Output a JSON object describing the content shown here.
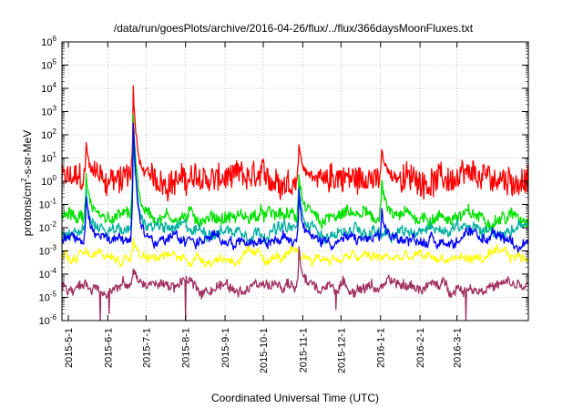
{
  "chart_data": {
    "type": "line",
    "title": "/data/run/goesPlots/archive/2016-04-26/flux/../flux/366daysMoonFluxes.txt",
    "xlabel": "Coordinated Universal Time (UTC)",
    "ylabel": {
      "prefix": "protons/cm",
      "sup": "2",
      "suffix": "-s-sr-MeV"
    },
    "yscale": "log",
    "ylim": [
      1e-06,
      1000000.0
    ],
    "y_ticks": [
      {
        "base": "10",
        "exp": "-6",
        "value": 1e-06
      },
      {
        "base": "10",
        "exp": "-5",
        "value": 1e-05
      },
      {
        "base": "10",
        "exp": "-4",
        "value": 0.0001
      },
      {
        "base": "10",
        "exp": "-3",
        "value": 0.001
      },
      {
        "base": "10",
        "exp": "-2",
        "value": 0.01
      },
      {
        "base": "10",
        "exp": "-1",
        "value": 0.1
      },
      {
        "base": "10",
        "exp": "0",
        "value": 1
      },
      {
        "base": "10",
        "exp": "1",
        "value": 10
      },
      {
        "base": "10",
        "exp": "2",
        "value": 100
      },
      {
        "base": "10",
        "exp": "3",
        "value": 1000
      },
      {
        "base": "10",
        "exp": "4",
        "value": 10000
      },
      {
        "base": "10",
        "exp": "5",
        "value": 100000
      },
      {
        "base": "10",
        "exp": "6",
        "value": 1000000
      }
    ],
    "xlim": [
      "2015-04-26",
      "2016-04-26"
    ],
    "x_ticks": [
      {
        "label": "2015-5-1",
        "date": "2015-05-01"
      },
      {
        "label": "2015-6-1",
        "date": "2015-06-01"
      },
      {
        "label": "2015-7-1",
        "date": "2015-07-01"
      },
      {
        "label": "2015-8-1",
        "date": "2015-08-01"
      },
      {
        "label": "2015-9-1",
        "date": "2015-09-01"
      },
      {
        "label": "2015-10-1",
        "date": "2015-10-01"
      },
      {
        "label": "2015-11-1",
        "date": "2015-11-01"
      },
      {
        "label": "2015-12-1",
        "date": "2015-12-01"
      },
      {
        "label": "2016-1-1",
        "date": "2016-01-01"
      },
      {
        "label": "2016-2-1",
        "date": "2016-02-01"
      },
      {
        "label": "2016-3-1",
        "date": "2016-03-01"
      }
    ],
    "grid": true,
    "legend": "none",
    "series": [
      {
        "color": "#ff0000",
        "baseline": 1.2,
        "spread_decades": 0.55,
        "events": [
          {
            "date": "2015-06-21",
            "peak": 10000
          },
          {
            "date": "2015-05-15",
            "peak": 30
          },
          {
            "date": "2015-10-29",
            "peak": 40
          },
          {
            "date": "2016-01-02",
            "peak": 25
          }
        ]
      },
      {
        "color": "#00e000",
        "baseline": 0.03,
        "spread_decades": 0.22,
        "events": [
          {
            "date": "2015-06-21",
            "peak": 800
          },
          {
            "date": "2015-05-15",
            "peak": 1.5
          },
          {
            "date": "2015-10-29",
            "peak": 2
          },
          {
            "date": "2016-01-02",
            "peak": 1
          }
        ]
      },
      {
        "color": "#00b0a0",
        "baseline": 0.008,
        "spread_decades": 0.18,
        "events": [
          {
            "date": "2015-06-21",
            "peak": 100
          },
          {
            "date": "2015-05-15",
            "peak": 0.3
          },
          {
            "date": "2015-10-29",
            "peak": 0.5
          }
        ]
      },
      {
        "color": "#0000ff",
        "baseline": 0.003,
        "spread_decades": 0.15,
        "events": [
          {
            "date": "2015-06-21",
            "peak": 300
          },
          {
            "date": "2015-05-15",
            "peak": 0.2
          },
          {
            "date": "2015-10-29",
            "peak": 0.3
          },
          {
            "date": "2016-01-02",
            "peak": 0.05
          }
        ]
      },
      {
        "color": "#ffff00",
        "baseline": 0.0005,
        "spread_decades": 0.12,
        "events": [
          {
            "date": "2015-06-21",
            "peak": 0.005
          }
        ]
      },
      {
        "color": "#a03060",
        "baseline": 3e-05,
        "spread_decades": 0.15,
        "events": [
          {
            "date": "2015-06-21",
            "peak": 0.0002
          },
          {
            "date": "2015-10-29",
            "peak": 0.001
          }
        ],
        "dips": [
          {
            "date": "2015-05-26",
            "value": 1e-06
          },
          {
            "date": "2015-06-02",
            "value": 2e-06
          },
          {
            "date": "2015-08-01",
            "value": 1e-06
          },
          {
            "date": "2015-11-27",
            "value": 3e-06
          },
          {
            "date": "2016-03-08",
            "value": 1e-06
          }
        ]
      }
    ]
  }
}
